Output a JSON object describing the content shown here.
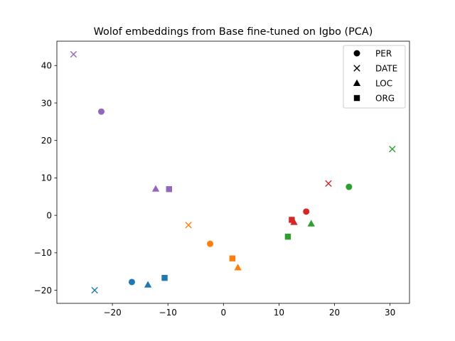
{
  "chart_data": {
    "type": "scatter",
    "title": "Wolof embeddings from Base fine-tuned on Igbo (PCA)",
    "xlabel": "",
    "ylabel": "",
    "xlim": [
      -30,
      33.5
    ],
    "ylim": [
      -23.5,
      46.5
    ],
    "xticks": [
      -20,
      -10,
      0,
      10,
      20,
      30
    ],
    "yticks": [
      -20,
      -10,
      0,
      10,
      20,
      30,
      40
    ],
    "xtick_labels": [
      "−20",
      "−10",
      "0",
      "10",
      "20",
      "30"
    ],
    "ytick_labels": [
      "−20",
      "−10",
      "0",
      "10",
      "20",
      "30",
      "40"
    ],
    "grid": false,
    "legend_position": "top-right",
    "legend": [
      {
        "label": "PER",
        "marker": "circle"
      },
      {
        "label": "DATE",
        "marker": "x"
      },
      {
        "label": "LOC",
        "marker": "triangle"
      },
      {
        "label": "ORG",
        "marker": "square"
      }
    ],
    "points": [
      {
        "x": -16.5,
        "y": -17.8,
        "marker": "circle",
        "color": "#1f77b4"
      },
      {
        "x": -23.2,
        "y": -20.0,
        "marker": "x",
        "color": "#1f77b4"
      },
      {
        "x": -13.6,
        "y": -18.5,
        "marker": "triangle",
        "color": "#1f77b4"
      },
      {
        "x": -10.6,
        "y": -16.7,
        "marker": "square",
        "color": "#1f77b4"
      },
      {
        "x": -2.4,
        "y": -7.6,
        "marker": "circle",
        "color": "#ff7f0e"
      },
      {
        "x": -6.3,
        "y": -2.6,
        "marker": "x",
        "color": "#ff7f0e"
      },
      {
        "x": 2.6,
        "y": -13.9,
        "marker": "triangle",
        "color": "#ff7f0e"
      },
      {
        "x": 1.6,
        "y": -11.5,
        "marker": "square",
        "color": "#ff7f0e"
      },
      {
        "x": 22.6,
        "y": 7.6,
        "marker": "circle",
        "color": "#2ca02c"
      },
      {
        "x": 30.4,
        "y": 17.7,
        "marker": "x",
        "color": "#2ca02c"
      },
      {
        "x": 15.8,
        "y": -2.2,
        "marker": "triangle",
        "color": "#2ca02c"
      },
      {
        "x": 11.6,
        "y": -5.7,
        "marker": "square",
        "color": "#2ca02c"
      },
      {
        "x": 14.9,
        "y": 1.0,
        "marker": "circle",
        "color": "#d62728"
      },
      {
        "x": 18.9,
        "y": 8.5,
        "marker": "x",
        "color": "#d62728"
      },
      {
        "x": 12.7,
        "y": -1.8,
        "marker": "triangle",
        "color": "#d62728"
      },
      {
        "x": 12.3,
        "y": -1.2,
        "marker": "square",
        "color": "#d62728"
      },
      {
        "x": -22.0,
        "y": 27.7,
        "marker": "circle",
        "color": "#9467bd"
      },
      {
        "x": -27.0,
        "y": 43.0,
        "marker": "x",
        "color": "#9467bd"
      },
      {
        "x": -12.2,
        "y": 7.1,
        "marker": "triangle",
        "color": "#9467bd"
      },
      {
        "x": -9.8,
        "y": 7.0,
        "marker": "square",
        "color": "#9467bd"
      }
    ]
  }
}
